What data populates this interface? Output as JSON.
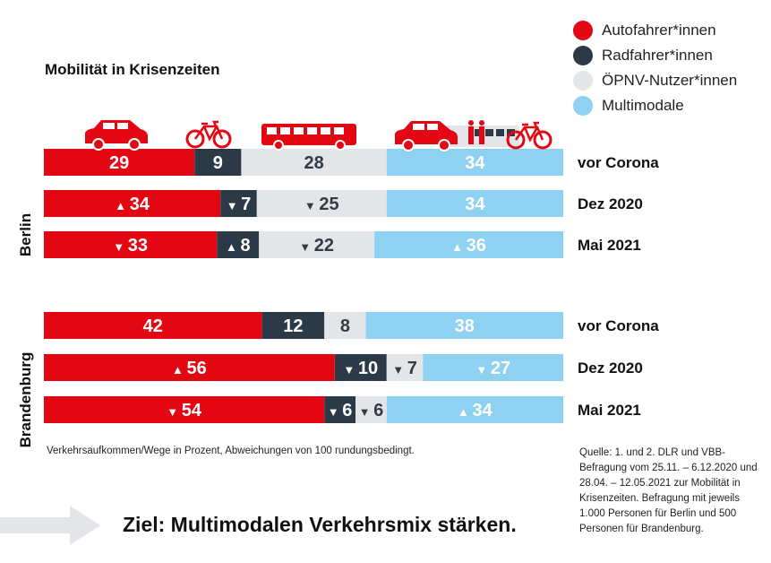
{
  "title": "Mobilität in Krisenzeiten",
  "legend": [
    {
      "label": "Autofahrer*innen",
      "color": "#e30613"
    },
    {
      "label": "Radfahrer*innen",
      "color": "#2c3a47"
    },
    {
      "label": "ÖPNV-Nutzer*innen",
      "color": "#e3e5e8"
    },
    {
      "label": "Multimodale",
      "color": "#8ed1f0"
    }
  ],
  "chart_data": [
    {
      "type": "bar",
      "stacked": true,
      "orientation": "horizontal",
      "group": "Berlin",
      "categories": [
        "vor Corona",
        "Dez 2020",
        "Mai 2021"
      ],
      "series": [
        {
          "name": "Autofahrer*innen",
          "values": [
            29,
            34,
            33
          ],
          "trend": [
            "",
            "up",
            "down"
          ]
        },
        {
          "name": "Radfahrer*innen",
          "values": [
            9,
            7,
            8
          ],
          "trend": [
            "",
            "down",
            "up"
          ]
        },
        {
          "name": "ÖPNV-Nutzer*innen",
          "values": [
            28,
            25,
            22
          ],
          "trend": [
            "",
            "down",
            "down"
          ]
        },
        {
          "name": "Multimodale",
          "values": [
            34,
            34,
            36
          ],
          "trend": [
            "",
            "",
            "up"
          ]
        }
      ]
    },
    {
      "type": "bar",
      "stacked": true,
      "orientation": "horizontal",
      "group": "Brandenburg",
      "categories": [
        "vor Corona",
        "Dez 2020",
        "Mai 2021"
      ],
      "series": [
        {
          "name": "Autofahrer*innen",
          "values": [
            42,
            56,
            54
          ],
          "trend": [
            "",
            "up",
            "down"
          ]
        },
        {
          "name": "Radfahrer*innen",
          "values": [
            12,
            10,
            6
          ],
          "trend": [
            "",
            "down",
            "down"
          ]
        },
        {
          "name": "ÖPNV-Nutzer*innen",
          "values": [
            8,
            7,
            6
          ],
          "trend": [
            "",
            "down",
            "down"
          ]
        },
        {
          "name": "Multimodale",
          "values": [
            38,
            27,
            34
          ],
          "trend": [
            "",
            "down",
            "up"
          ]
        }
      ]
    }
  ],
  "icons": [
    "car-icon",
    "bicycle-icon",
    "bus-icon",
    "multimodal-icon"
  ],
  "footnote": "Verkehrsaufkommen/Wege in Prozent, Abweichungen von 100 rundungsbedingt.",
  "source": "Quelle: 1. und 2. DLR und VBB-Befragung vom 25.11. – 6.12.2020 und 28.04. – 12.05.2021 zur Mobilität in Krisenzeiten. Befragung mit jeweils 1.000 Personen für Berlin und 500 Personen für Brandenburg.",
  "goal": "Ziel: Multimodalen Verkehrsmix stärken."
}
